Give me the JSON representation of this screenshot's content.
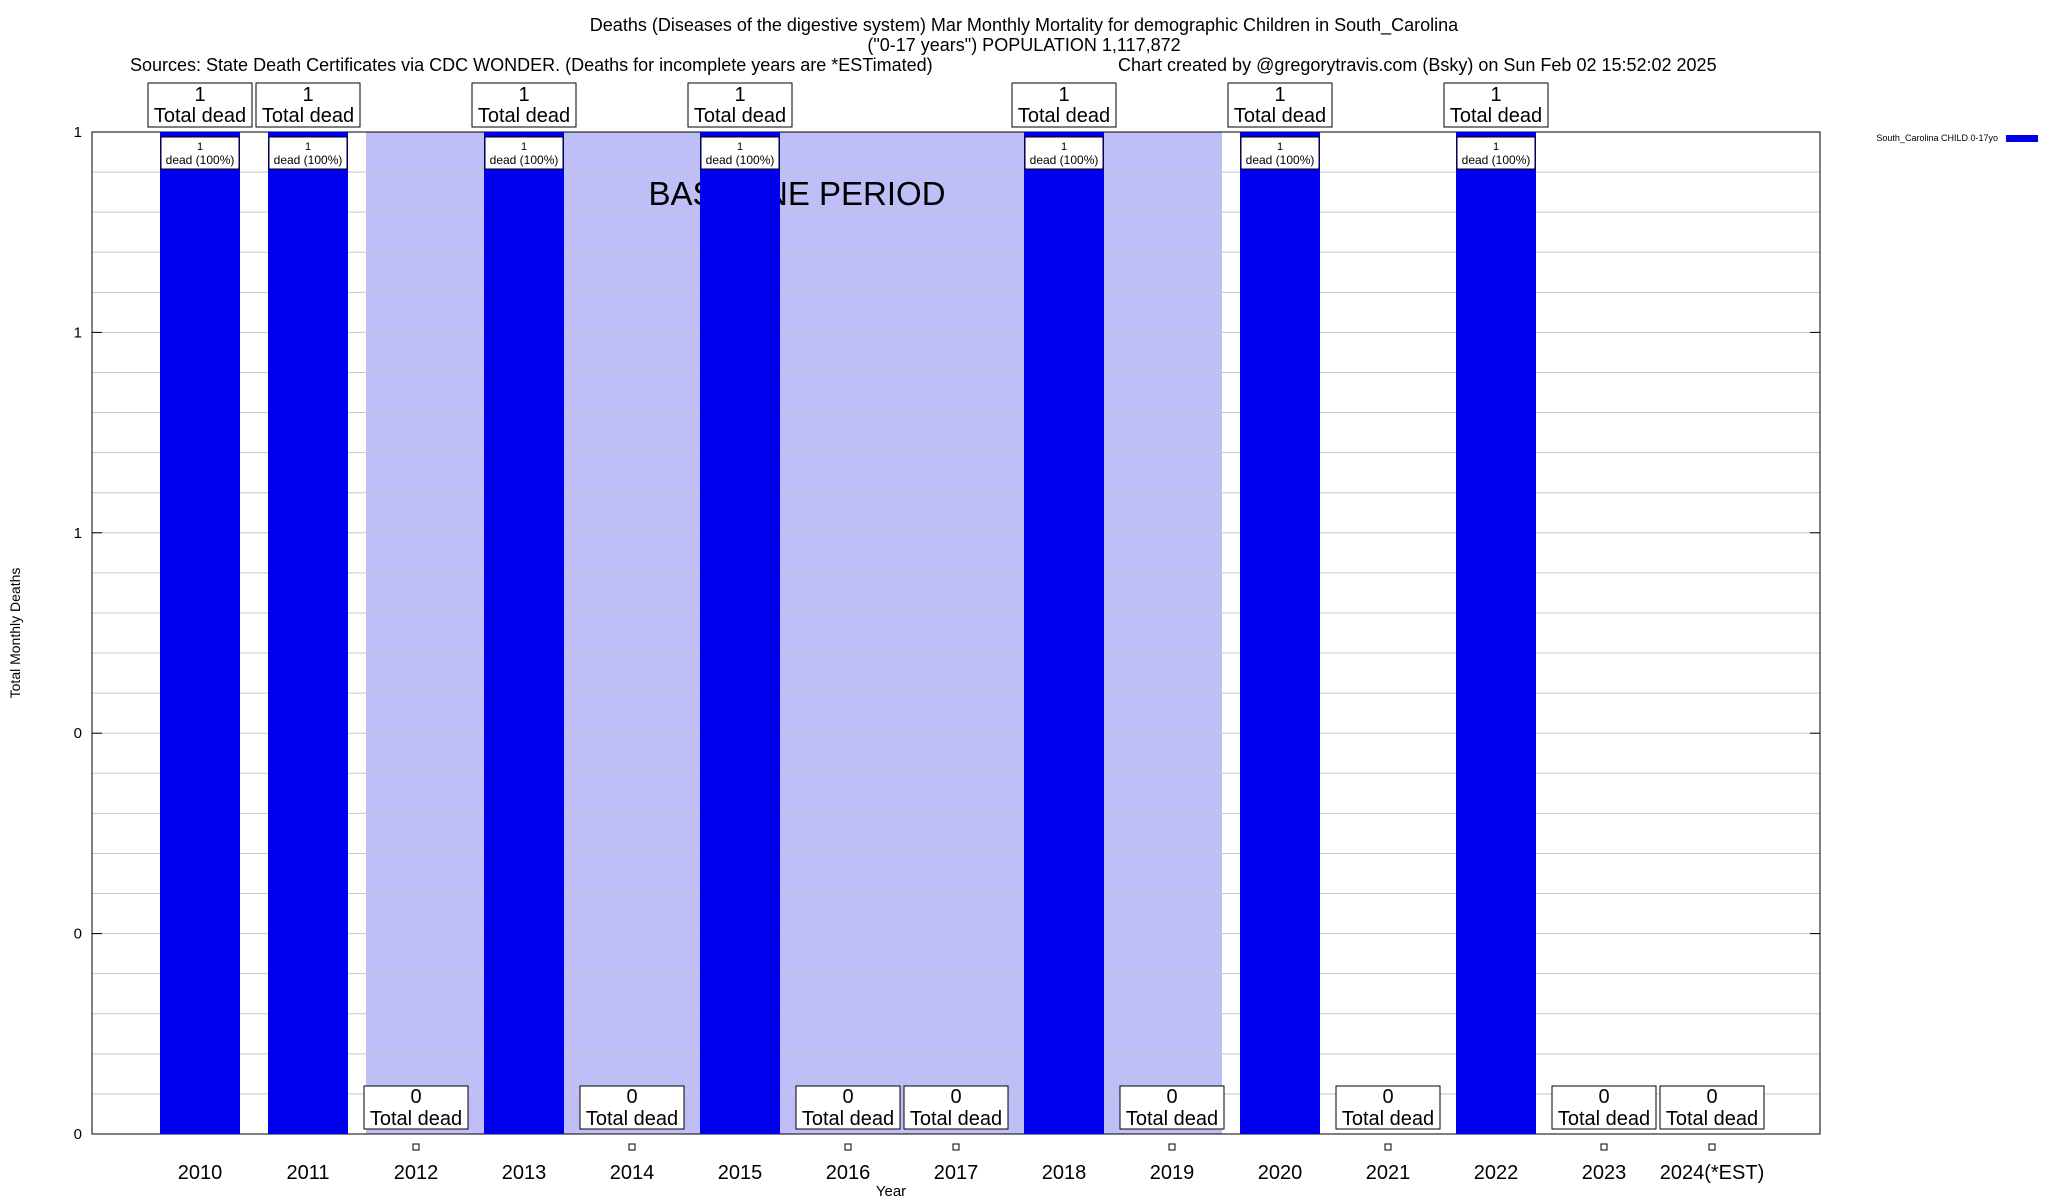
{
  "chart_data": {
    "type": "bar",
    "title_line1": "Deaths (Diseases of the digestive system) Mar Monthly Mortality for demographic Children in South_Carolina",
    "title_line2": "(\"0-17 years\") POPULATION 1,117,872",
    "subtitle_left": "Sources: State Death Certificates via CDC WONDER. (Deaths for incomplete years are *ESTimated)",
    "subtitle_right": "Chart created by @gregorytravis.com (Bsky) on Sun Feb 02 15:52:02 2025",
    "xlabel": "Year",
    "ylabel": "Total Monthly Deaths",
    "categories": [
      "2010",
      "2011",
      "2012",
      "2013",
      "2014",
      "2015",
      "2016",
      "2017",
      "2018",
      "2019",
      "2020",
      "2021",
      "2022",
      "2023",
      "2024(*EST)"
    ],
    "values": [
      1,
      1,
      0,
      1,
      0,
      1,
      0,
      0,
      1,
      0,
      1,
      0,
      1,
      0,
      0
    ],
    "series": [
      {
        "name": "South_Carolina CHILD 0-17yo",
        "values": [
          1,
          1,
          0,
          1,
          0,
          1,
          0,
          0,
          1,
          0,
          1,
          0,
          1,
          0,
          0
        ]
      }
    ],
    "ylim": [
      0,
      1
    ],
    "ytick_labels": [
      "0",
      "0",
      "0",
      "1",
      "1",
      "1"
    ],
    "top_label_suffix": "Total dead",
    "inner_label": "dead (100%)",
    "baseline_period": {
      "label": "BASELINE PERIOD",
      "from": "2012",
      "to": "2019"
    },
    "legend_position": "top-right",
    "grid": true,
    "colors": {
      "bar": "#0000ee",
      "baseline": "#bfbff8",
      "grid": "#c8c8c8"
    }
  }
}
